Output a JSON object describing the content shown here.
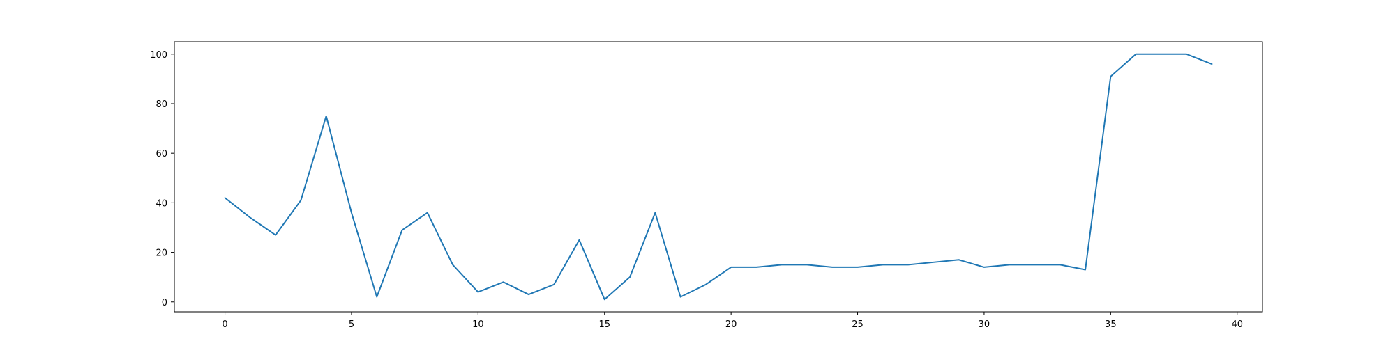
{
  "chart_data": {
    "type": "line",
    "title": "",
    "xlabel": "",
    "ylabel": "",
    "xlim": [
      -2,
      41
    ],
    "ylim": [
      -4,
      105
    ],
    "grid": false,
    "legend": "none",
    "x_ticks": [
      0,
      5,
      10,
      15,
      20,
      25,
      30,
      35,
      40
    ],
    "y_ticks": [
      0,
      20,
      40,
      60,
      80,
      100
    ],
    "x_tick_labels": [
      "0",
      "5",
      "10",
      "15",
      "20",
      "25",
      "30",
      "35",
      "40"
    ],
    "y_tick_labels": [
      "0",
      "20",
      "40",
      "60",
      "80",
      "100"
    ],
    "series": [
      {
        "color": "#1f77b4",
        "x": [
          0,
          1,
          2,
          3,
          4,
          5,
          6,
          7,
          8,
          9,
          10,
          11,
          12,
          13,
          14,
          15,
          16,
          17,
          18,
          19,
          20,
          21,
          22,
          23,
          24,
          25,
          26,
          27,
          28,
          29,
          30,
          31,
          32,
          33,
          34,
          35,
          36,
          37,
          38,
          39
        ],
        "y": [
          42,
          34,
          27,
          41,
          75,
          36,
          2,
          29,
          36,
          15,
          4,
          8,
          3,
          7,
          25,
          1,
          10,
          36,
          2,
          7,
          14,
          14,
          15,
          15,
          14,
          14,
          15,
          15,
          16,
          17,
          14,
          15,
          15,
          15,
          13,
          91,
          100,
          100,
          100,
          96
        ]
      }
    ]
  }
}
